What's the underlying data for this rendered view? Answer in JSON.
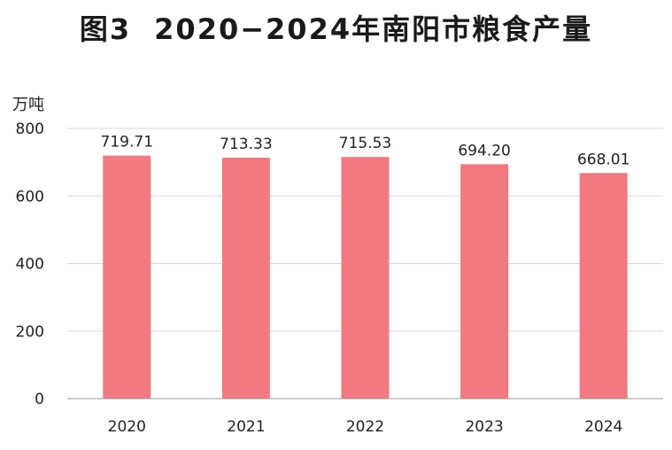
{
  "title": {
    "figure_number": "图3",
    "text": "2020−2024年南阳市粮食产量"
  },
  "chart_data": {
    "type": "bar",
    "title": "2020−2024年南阳市粮食产量",
    "ylabel": "万吨",
    "xlabel": "",
    "categories": [
      "2020",
      "2021",
      "2022",
      "2023",
      "2024"
    ],
    "values": [
      719.71,
      713.33,
      715.53,
      694.2,
      668.01
    ],
    "value_labels": [
      "719.71",
      "713.33",
      "715.53",
      "694.20",
      "668.01"
    ],
    "ylim": [
      0,
      800
    ],
    "yticks": [
      "0",
      "200",
      "400",
      "600",
      "800"
    ],
    "grid": true,
    "bar_color": "#f07a80"
  }
}
